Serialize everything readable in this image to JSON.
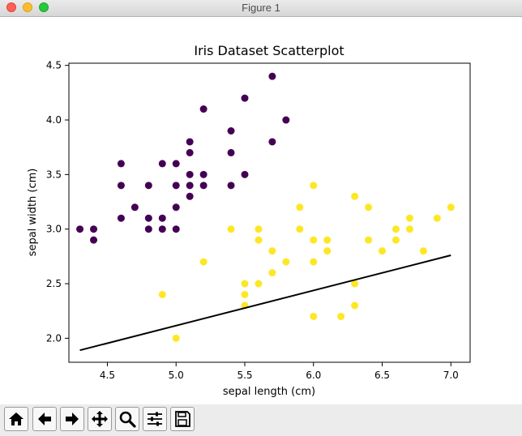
{
  "window": {
    "title": "Figure 1"
  },
  "toolbar": {
    "buttons": [
      {
        "name": "home-button",
        "icon": "home-icon"
      },
      {
        "name": "back-button",
        "icon": "arrow-left-icon"
      },
      {
        "name": "forward-button",
        "icon": "arrow-right-icon"
      },
      {
        "name": "pan-button",
        "icon": "move-icon"
      },
      {
        "name": "zoom-button",
        "icon": "magnifier-icon"
      },
      {
        "name": "subplots-button",
        "icon": "sliders-icon"
      },
      {
        "name": "save-button",
        "icon": "floppy-disk-icon"
      }
    ]
  },
  "chart_data": {
    "type": "scatter",
    "title": "Iris Dataset Scatterplot",
    "xlabel": "sepal length (cm)",
    "ylabel": "sepal width (cm)",
    "xlim": [
      4.22,
      7.14
    ],
    "ylim": [
      1.78,
      4.52
    ],
    "xticks": [
      "4.5",
      "5.0",
      "5.5",
      "6.0",
      "6.5",
      "7.0"
    ],
    "yticks": [
      "2.0",
      "2.5",
      "3.0",
      "3.5",
      "4.0",
      "4.5"
    ],
    "grid": false,
    "colors": {
      "class0": "#440154",
      "class1": "#fde725",
      "line": "#000000"
    },
    "series": [
      {
        "points": [
          [
            4.3,
            3.0
          ],
          [
            4.4,
            3.0
          ],
          [
            4.4,
            2.9
          ],
          [
            4.6,
            3.6
          ],
          [
            4.6,
            3.4
          ],
          [
            4.6,
            3.1
          ],
          [
            4.7,
            3.2
          ],
          [
            4.8,
            3.4
          ],
          [
            4.8,
            3.1
          ],
          [
            4.8,
            3.0
          ],
          [
            4.9,
            3.6
          ],
          [
            4.9,
            3.1
          ],
          [
            4.9,
            3.0
          ],
          [
            5.0,
            3.6
          ],
          [
            5.0,
            3.4
          ],
          [
            5.0,
            3.2
          ],
          [
            5.0,
            3.0
          ],
          [
            5.1,
            3.8
          ],
          [
            5.1,
            3.7
          ],
          [
            5.1,
            3.5
          ],
          [
            5.1,
            3.4
          ],
          [
            5.1,
            3.3
          ],
          [
            5.2,
            4.1
          ],
          [
            5.2,
            3.5
          ],
          [
            5.2,
            3.4
          ],
          [
            5.4,
            3.9
          ],
          [
            5.4,
            3.7
          ],
          [
            5.4,
            3.4
          ],
          [
            5.5,
            4.2
          ],
          [
            5.5,
            3.5
          ],
          [
            5.7,
            4.4
          ],
          [
            5.7,
            3.8
          ],
          [
            5.8,
            4.0
          ]
        ]
      },
      {
        "points": [
          [
            4.9,
            2.4
          ],
          [
            5.0,
            2.0
          ],
          [
            5.2,
            2.7
          ],
          [
            5.4,
            3.0
          ],
          [
            5.5,
            2.5
          ],
          [
            5.5,
            2.4
          ],
          [
            5.5,
            2.3
          ],
          [
            5.6,
            3.0
          ],
          [
            5.6,
            2.9
          ],
          [
            5.6,
            2.5
          ],
          [
            5.7,
            2.8
          ],
          [
            5.7,
            2.6
          ],
          [
            5.8,
            2.7
          ],
          [
            5.9,
            3.2
          ],
          [
            5.9,
            3.0
          ],
          [
            6.0,
            3.4
          ],
          [
            6.0,
            2.9
          ],
          [
            6.0,
            2.7
          ],
          [
            6.0,
            2.2
          ],
          [
            6.1,
            2.9
          ],
          [
            6.1,
            2.8
          ],
          [
            6.2,
            2.2
          ],
          [
            6.3,
            3.3
          ],
          [
            6.3,
            2.5
          ],
          [
            6.3,
            2.3
          ],
          [
            6.4,
            3.2
          ],
          [
            6.4,
            2.9
          ],
          [
            6.5,
            2.8
          ],
          [
            6.6,
            3.0
          ],
          [
            6.6,
            2.9
          ],
          [
            6.7,
            3.1
          ],
          [
            6.7,
            3.0
          ],
          [
            6.8,
            2.8
          ],
          [
            6.9,
            3.1
          ],
          [
            7.0,
            3.2
          ]
        ]
      }
    ],
    "line": {
      "x": [
        4.3,
        7.0
      ],
      "y": [
        1.89,
        2.76
      ]
    }
  }
}
